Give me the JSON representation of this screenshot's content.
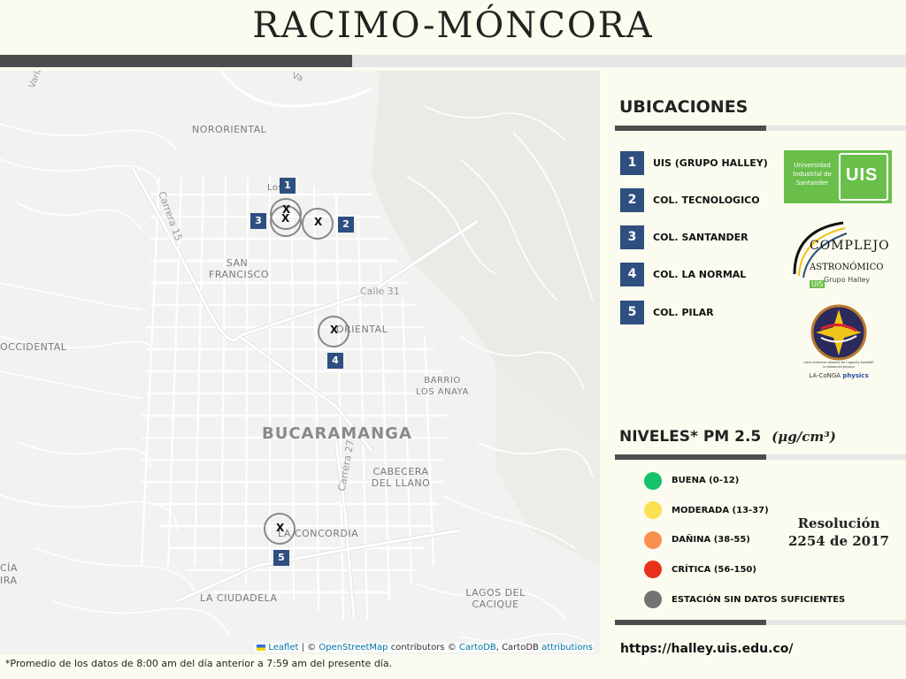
{
  "title": "RACIMO-MÓNCORA",
  "map": {
    "places": {
      "nororiental": "NORORIENTAL",
      "san_francisco": "SAN FRANCISCO",
      "oriental": "ORIENTAL",
      "occidental": "OCCIDENTAL",
      "barrio_los_anaya": "BARRIO LOS ANAYA",
      "cabecera": "CABECERA DEL LLANO",
      "la_concordia": "LA CONCORDIA",
      "la_ciudadela": "LA CIUDADELA",
      "lagos": "LAGOS DEL CACIQUE",
      "los": "Los",
      "cia": "CÍA",
      "ira": "IRA"
    },
    "city": "BUCARAMANGA",
    "streets": {
      "carrera15": "Carrera 15",
      "calle31": "Calle 31",
      "carrera27": "Carrera 27",
      "varia": "Varia",
      "top_road": "Va"
    },
    "marker_symbol": "X",
    "stations": [
      {
        "number": "1"
      },
      {
        "number": "2"
      },
      {
        "number": "3"
      },
      {
        "number": "4"
      },
      {
        "number": "5"
      }
    ],
    "attribution": {
      "leaflet": "Leaflet",
      "sep": " | © ",
      "osm": "OpenStreetMap",
      "contrib": " contributors © ",
      "cartodb": "CartoDB",
      "cartodb2": ", CartoDB ",
      "attributions": "attributions"
    }
  },
  "footnote": "*Promedio de los datos de 8:00 am del día anterior a 7:59 am del presente día.",
  "ubicaciones": {
    "title": "UBICACIONES",
    "items": [
      {
        "num": "1",
        "label": "UIS (GRUPO HALLEY)"
      },
      {
        "num": "2",
        "label": "COL. TECNOLOGICO"
      },
      {
        "num": "3",
        "label": "COL. SANTANDER"
      },
      {
        "num": "4",
        "label": "COL. LA NORMAL"
      },
      {
        "num": "5",
        "label": "COL. PILAR"
      }
    ]
  },
  "logos": {
    "uis_text": "Universidad Industrial de Santander",
    "uis_mark": "UIS",
    "complejo_line1": "COMPLEJO",
    "complejo_line2": "ASTRONÓMICO",
    "complejo_badge": "UIS",
    "complejo_sub": "Grupo Halley",
    "laconga_small": "Latin American alliance for Capacity buildiNG in Advanced physics",
    "laconga_name": "LA-CoNGA",
    "laconga_physics": "physics"
  },
  "niveles": {
    "title": "NIVELES* PM 2.5",
    "units": "(μg/cm³)",
    "levels": [
      {
        "label": "BUENA (0-12)",
        "color": "#16c26a"
      },
      {
        "label": "MODERADA (13-37)",
        "color": "#fde04f"
      },
      {
        "label": "DAÑINA (38-55)",
        "color": "#f99050"
      },
      {
        "label": "CRÍTICA (56-150)",
        "color": "#e8311a"
      },
      {
        "label": "ESTACIÓN SIN DATOS SUFICIENTES",
        "color": "#737373"
      }
    ],
    "resolution_line1": "Resolución",
    "resolution_line2": "2254 de 2017"
  },
  "url": "https://halley.uis.edu.co/",
  "colors": {
    "accent_blue": "#2e4f7f",
    "dark_bar": "#4d4d4d",
    "light_bar": "#e6e6e6",
    "background": "#fbfcef",
    "uis_green": "#6abf4b"
  }
}
